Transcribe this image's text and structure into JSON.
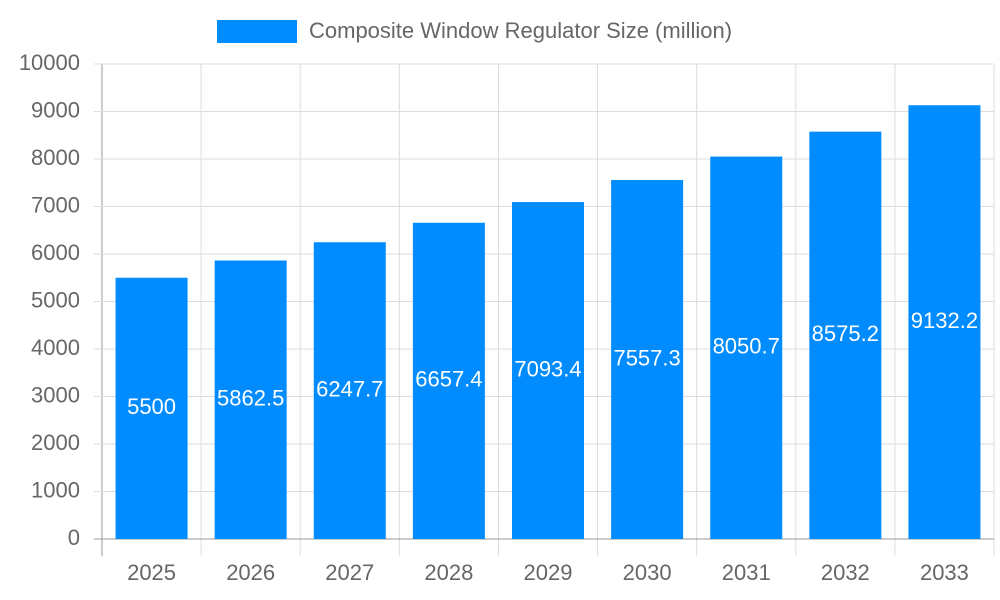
{
  "chart_data": {
    "type": "bar",
    "legend": "Composite Window Regulator Size (million)",
    "categories": [
      "2025",
      "2026",
      "2027",
      "2028",
      "2029",
      "2030",
      "2031",
      "2032",
      "2033"
    ],
    "values": [
      5500,
      5862.5,
      6247.7,
      6657.4,
      7093.4,
      7557.3,
      8050.7,
      8575.2,
      9132.2
    ],
    "color": "#008cff",
    "ylim": [
      0,
      10000
    ],
    "yticks": [
      0,
      1000,
      2000,
      3000,
      4000,
      5000,
      6000,
      7000,
      8000,
      9000,
      10000
    ],
    "grid": true,
    "legend_position": "top"
  }
}
